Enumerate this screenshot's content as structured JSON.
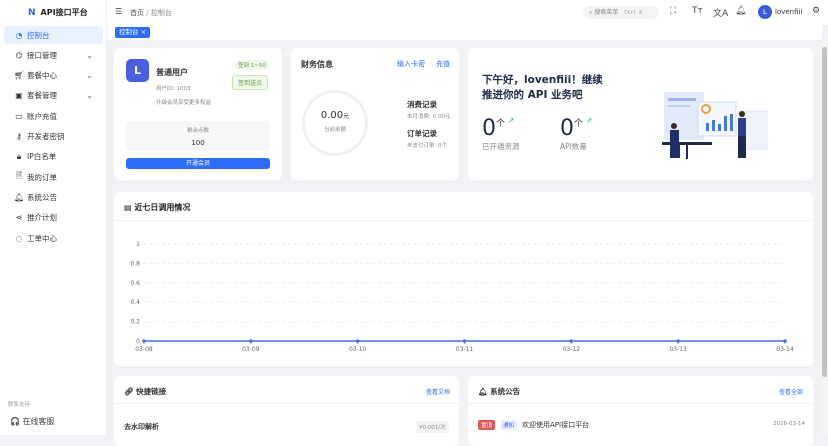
{
  "app": {
    "title": "API接口平台",
    "logo_letter": "N"
  },
  "sidebar": {
    "items": [
      {
        "label": "控制台",
        "icon": "dashboard-icon",
        "active": true
      },
      {
        "label": "接口管理",
        "icon": "api-icon",
        "expandable": true
      },
      {
        "label": "套餐中心",
        "icon": "cart-icon",
        "expandable": true
      },
      {
        "label": "套餐管理",
        "icon": "package-icon",
        "expandable": true
      },
      {
        "label": "账户充值",
        "icon": "folder-icon"
      },
      {
        "label": "开发者密钥",
        "icon": "key-icon"
      },
      {
        "label": "IP白名单",
        "icon": "lock-icon"
      },
      {
        "label": "我的订单",
        "icon": "document-icon"
      },
      {
        "label": "系统公告",
        "icon": "bell-icon"
      },
      {
        "label": "推介计划",
        "icon": "share-icon"
      },
      {
        "label": "工单中心",
        "icon": "chat-icon"
      }
    ],
    "support_label": "联系支持",
    "support_item": "在线客服"
  },
  "header": {
    "breadcrumb": [
      "首页",
      "控制台"
    ],
    "search_placeholder": "搜索菜单",
    "search_shortcut": "Ctrl K",
    "user_name": "lovenfiii",
    "avatar_letter": "L"
  },
  "tabs": [
    {
      "label": "控制台",
      "closable": true
    }
  ],
  "user_card": {
    "avatar_letter": "L",
    "role": "普通用户",
    "user_id": "用户ID: 1003",
    "hint": "升级会员享受更多权益",
    "signin_badge": "签到 1~50",
    "signin_button": "签到送点",
    "points_label": "剩余点数",
    "points_value": "100",
    "upgrade_button": "开通会员"
  },
  "finance": {
    "title": "财务信息",
    "link_card": "输入卡密",
    "link_recharge": "充值",
    "balance": "0.00",
    "unit": "元",
    "balance_label": "当前余额",
    "consume_title": "消费记录",
    "consume_detail": "本月消费: 0.00元",
    "order_title": "订单记录",
    "order_detail": "未支付订单: 0个"
  },
  "welcome": {
    "line1": "下午好，lovenfiii！继续",
    "line2": "推进你的 API 业务吧",
    "stats": [
      {
        "value": "0",
        "unit": "个",
        "label": "已开通资源"
      },
      {
        "value": "0",
        "unit": "个",
        "label": "API数量"
      }
    ]
  },
  "chart_card": {
    "title": "近七日调用情况"
  },
  "chart_data": {
    "type": "line",
    "title": "",
    "x": [
      "03-08",
      "03-09",
      "03-10",
      "03-11",
      "03-12",
      "03-13",
      "03-14"
    ],
    "values": [
      0,
      0,
      0,
      0,
      0,
      0,
      0
    ],
    "yticks": [
      "0",
      "0.2",
      "0.4",
      "0.6",
      "0.8",
      "1"
    ],
    "ylim": [
      0,
      1
    ],
    "grid": true,
    "color": "#4a6cf7"
  },
  "quick_links": {
    "title": "快捷链接",
    "link": "查看文档",
    "items": [
      {
        "name": "去水印解析",
        "price": "¥0.001/次"
      }
    ]
  },
  "notices": {
    "title": "系统公告",
    "link": "查看全部",
    "items": [
      {
        "tag1": "置顶",
        "tag2": "通知",
        "text": "欢迎使用API接口平台",
        "date": "2026-03-14"
      }
    ]
  }
}
